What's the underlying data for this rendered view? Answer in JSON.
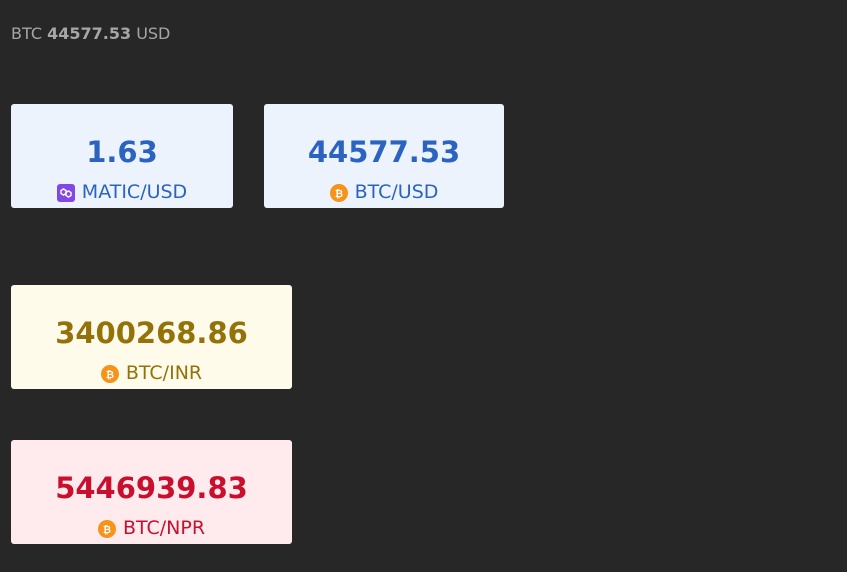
{
  "ticker": {
    "prefix": "BTC",
    "price": "44577.53",
    "suffix": "USD"
  },
  "cards": {
    "matic_usd": {
      "value": "1.63",
      "pair": "MATIC/USD",
      "icon": "polygon-matic-icon",
      "icon_color": "#8247e5",
      "text_color": "#2a64c0",
      "background": "#edf3fc"
    },
    "btc_usd": {
      "value": "44577.53",
      "pair": "BTC/USD",
      "icon": "bitcoin-icon",
      "icon_color": "#f7931a",
      "text_color": "#2a64c0",
      "background": "#edf3fc"
    },
    "btc_inr": {
      "value": "3400268.86",
      "pair": "BTC/INR",
      "icon": "bitcoin-icon",
      "icon_color": "#f7931a",
      "text_color": "#94720a",
      "background": "#fffbea"
    },
    "btc_npr": {
      "value": "5446939.83",
      "pair": "BTC/NPR",
      "icon": "bitcoin-icon",
      "icon_color": "#f7931a",
      "text_color": "#c8102e",
      "background": "#ffebee"
    }
  }
}
